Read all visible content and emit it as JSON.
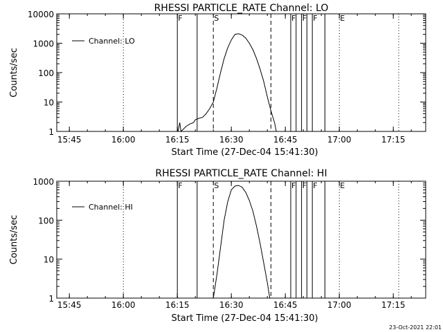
{
  "chart_data": [
    {
      "type": "line",
      "title": "RHESSI PARTICLE_RATE Channel: LO",
      "xlabel": "Start Time (27-Dec-04 15:41:30)",
      "ylabel": "Counts/sec",
      "y_scale": "log",
      "xlim": [
        "15:41:30",
        "17:24:00"
      ],
      "ylim": [
        1,
        10000
      ],
      "x_ticks": [
        "15:45",
        "16:00",
        "16:15",
        "16:30",
        "16:45",
        "17:00",
        "17:15"
      ],
      "y_ticks": [
        "1",
        "10",
        "100",
        "1000",
        "10000"
      ],
      "legend": {
        "position": "top-left",
        "entries": [
          "Channel: LO"
        ]
      },
      "series": [
        {
          "name": "Channel: LO",
          "x": [
            "16:15:10",
            "16:15:40",
            "16:16:00",
            "16:17:30",
            "16:18:30",
            "16:19:30",
            "16:20:00",
            "16:21:00",
            "16:22:00",
            "16:23:00",
            "16:24:00",
            "16:25:00",
            "16:26:00",
            "16:27:00",
            "16:28:00",
            "16:29:00",
            "16:30:00",
            "16:31:00",
            "16:32:00",
            "16:33:00",
            "16:34:00",
            "16:35:00",
            "16:36:00",
            "16:37:00",
            "16:38:00",
            "16:39:00",
            "16:40:00",
            "16:41:00",
            "16:42:00",
            "16:42:30"
          ],
          "y": [
            1,
            2,
            1,
            1.5,
            1.8,
            2,
            2.5,
            2.8,
            3,
            4,
            6,
            10,
            30,
            100,
            300,
            700,
            1300,
            2000,
            2100,
            1900,
            1500,
            1000,
            600,
            300,
            130,
            50,
            15,
            5,
            2,
            1
          ]
        }
      ],
      "event_markers": [
        {
          "label": "F",
          "x": "16:15:00",
          "style": "solid"
        },
        {
          "label": "",
          "x": "16:20:30",
          "style": "solid"
        },
        {
          "label": "S",
          "x": "16:25:00",
          "style": "dashed"
        },
        {
          "label": "",
          "x": "16:41:00",
          "style": "dashed"
        },
        {
          "label": "F",
          "x": "16:46:30",
          "style": "solid"
        },
        {
          "label": "",
          "x": "16:48:00",
          "style": "solid"
        },
        {
          "label": "F",
          "x": "16:49:30",
          "style": "solid"
        },
        {
          "label": "",
          "x": "16:51:00",
          "style": "solid"
        },
        {
          "label": "F",
          "x": "16:52:30",
          "style": "solid"
        },
        {
          "label": "",
          "x": "16:56:00",
          "style": "solid"
        },
        {
          "label": "E",
          "x": "17:00:00",
          "style": "dotted"
        },
        {
          "label": "",
          "x": "17:16:30",
          "style": "dotted"
        },
        {
          "label": "",
          "x": "16:00:00",
          "style": "dotted"
        }
      ]
    },
    {
      "type": "line",
      "title": "RHESSI PARTICLE_RATE Channel: HI",
      "xlabel": "Start Time (27-Dec-04 15:41:30)",
      "ylabel": "Counts/sec",
      "y_scale": "log",
      "xlim": [
        "15:41:30",
        "17:24:00"
      ],
      "ylim": [
        1,
        1000
      ],
      "x_ticks": [
        "15:45",
        "16:00",
        "16:15",
        "16:30",
        "16:45",
        "17:00",
        "17:15"
      ],
      "y_ticks": [
        "1",
        "10",
        "100",
        "1000"
      ],
      "legend": {
        "position": "top-left",
        "entries": [
          "Channel: HI"
        ]
      },
      "series": [
        {
          "name": "Channel: HI",
          "x": [
            "16:25:00",
            "16:26:00",
            "16:27:00",
            "16:28:00",
            "16:29:00",
            "16:30:00",
            "16:31:00",
            "16:32:00",
            "16:33:00",
            "16:34:00",
            "16:35:00",
            "16:36:00",
            "16:37:00",
            "16:38:00",
            "16:39:00",
            "16:40:00",
            "16:40:40"
          ],
          "y": [
            1,
            4,
            20,
            100,
            300,
            600,
            750,
            780,
            700,
            520,
            320,
            170,
            70,
            25,
            8,
            2.5,
            1
          ]
        }
      ],
      "event_markers": [
        {
          "label": "F",
          "x": "16:15:00",
          "style": "solid"
        },
        {
          "label": "",
          "x": "16:20:30",
          "style": "solid"
        },
        {
          "label": "S",
          "x": "16:25:00",
          "style": "dashed"
        },
        {
          "label": "",
          "x": "16:41:00",
          "style": "dashed"
        },
        {
          "label": "F",
          "x": "16:46:30",
          "style": "solid"
        },
        {
          "label": "",
          "x": "16:48:00",
          "style": "solid"
        },
        {
          "label": "F",
          "x": "16:49:30",
          "style": "solid"
        },
        {
          "label": "",
          "x": "16:51:00",
          "style": "solid"
        },
        {
          "label": "F",
          "x": "16:52:30",
          "style": "solid"
        },
        {
          "label": "",
          "x": "16:56:00",
          "style": "solid"
        },
        {
          "label": "E",
          "x": "17:00:00",
          "style": "dotted"
        },
        {
          "label": "",
          "x": "17:16:30",
          "style": "dotted"
        },
        {
          "label": "",
          "x": "16:00:00",
          "style": "dotted"
        }
      ]
    }
  ],
  "footer": {
    "timestamp": "23-Oct-2021 22:01"
  }
}
